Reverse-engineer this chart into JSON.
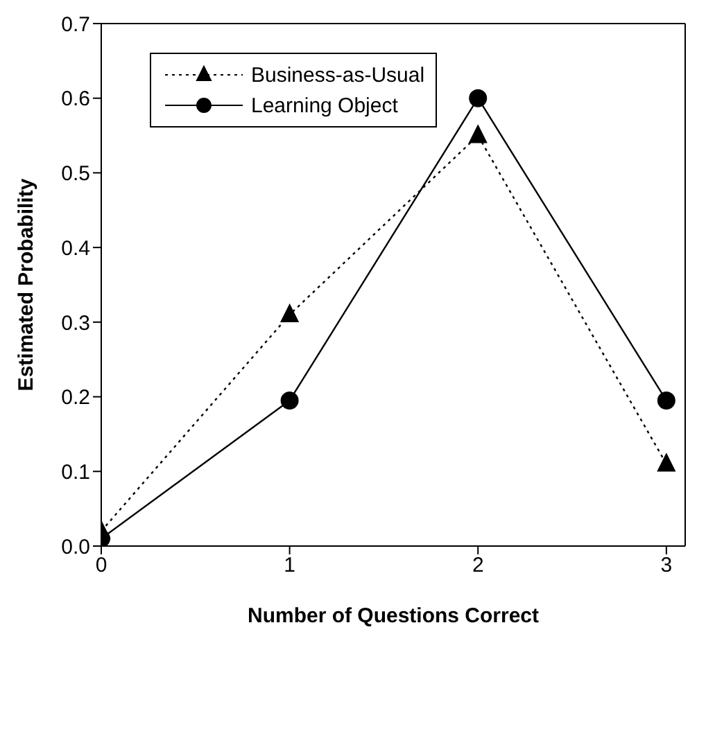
{
  "chart_data": {
    "type": "line",
    "xlabel": "Number of Questions Correct",
    "ylabel": "Estimated Probability",
    "x": [
      0,
      1,
      2,
      3
    ],
    "series": [
      {
        "name": "Business-as-Usual",
        "color": "#000000",
        "values": [
          0.02,
          0.31,
          0.55,
          0.11
        ],
        "marker": "triangle",
        "line_style": "dotted"
      },
      {
        "name": "Learning Object",
        "color": "#000000",
        "values": [
          0.01,
          0.195,
          0.6,
          0.195
        ],
        "marker": "circle",
        "line_style": "solid"
      }
    ],
    "xlim": [
      0,
      3.1
    ],
    "xticks": [
      0,
      1,
      2,
      3
    ],
    "ylim": [
      0,
      0.7
    ],
    "yticks": [
      {
        "value": 0,
        "label": "0.0"
      },
      0.1,
      0.2,
      0.3,
      0.4,
      0.5,
      0.6,
      0.7
    ],
    "grid": false,
    "legend": "top left"
  }
}
